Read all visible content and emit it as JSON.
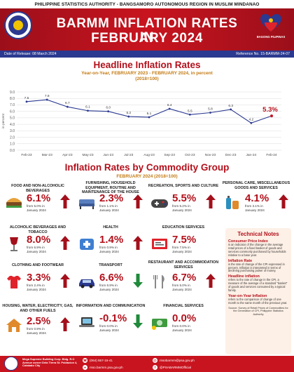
{
  "header": {
    "authority": "PHILIPPINE STATISTICS AUTHORITY - BANGSAMORO AUTONOMOUS REGION IN MUSLIM MINDANAO",
    "title_line1": "BARMM INFLATION RATES IN",
    "title_line2": "FEBRUARY 2024",
    "right_logo_caption": "BAGONG PILIPINAS",
    "release": "Date of Release: 08 March 2024",
    "reference": "Reference No. 15-BARMM-24-07",
    "accent": "#c8141f",
    "navy": "#2b3990"
  },
  "headline": {
    "title": "Headline Inflation Rates",
    "subtitle": "Year-on-Year, FEBRUARY 2023 - FEBRUARY 2024, in percent",
    "base": "(2018=100)"
  },
  "chart_data": {
    "type": "line",
    "ylabel": "in percent",
    "ylim": [
      0,
      9
    ],
    "yticks": [
      "0.0",
      "1.0",
      "2.0",
      "3.0",
      "4.0",
      "5.0",
      "6.0",
      "7.0",
      "8.0",
      "9.0"
    ],
    "categories": [
      "Feb-23",
      "Mar-23",
      "Apr-23",
      "May-23",
      "Jun-23",
      "Jul-23",
      "Aug-23",
      "Sep-23",
      "Oct-23",
      "Nov-23",
      "Dec-23",
      "Jan-24",
      "Feb-24"
    ],
    "values": [
      7.5,
      7.8,
      6.7,
      6.1,
      6.0,
      5.2,
      5.1,
      6.4,
      5.5,
      5.8,
      6.3,
      4.2,
      5.3
    ],
    "data_labels": [
      "7.5",
      "7.8",
      "6.7",
      "6.1",
      "6.0",
      "5.2",
      "5.1",
      "6.4",
      "5.5",
      "5.8",
      "6.3",
      "4.2",
      "5.3%"
    ],
    "line_color": "#2b3990"
  },
  "commodity": {
    "title": "Inflation Rates by Commodity Group",
    "subtitle": "FEBRUARY 2024 (2018=100)",
    "up_color": "#a3101b",
    "down_color": "#1f8a3a",
    "groups": [
      {
        "name": "FOOD AND NON-ALCOHOLIC BEVERAGES",
        "value": "6.1%",
        "from": "from 5.0% in January 2024",
        "direction": "up",
        "icon": "food-icon"
      },
      {
        "name": "FURNISHING, HOUSEHOLD EQUIPMENT, ROUTINE AND MAINTENANCE OF THE HOUSE",
        "value": "2.3%",
        "from": "from 1.1% in January 2024",
        "direction": "up",
        "icon": "furniture-icon"
      },
      {
        "name": "RECREATION, SPORTS AND CULTURE",
        "value": "5.5%",
        "from": "from 5.2% in January 2024",
        "direction": "up",
        "icon": "gamepad-icon"
      },
      {
        "name": "PERSONAL CARE, MISCELLANEOUS GOODS AND SERVICES",
        "value": "4.1%",
        "from": "from 3.1% in January 2024",
        "direction": "up",
        "icon": "personal-care-icon"
      },
      {
        "name": "ALCOHOLIC BEVERAGES AND TOBACCO",
        "value": "8.0%",
        "from": "from 6.9% in January 2024",
        "direction": "up",
        "icon": "wine-icon"
      },
      {
        "name": "HEALTH",
        "value": "1.4%",
        "from": "from 0.9% in January 2024",
        "direction": "up",
        "icon": "health-icon"
      },
      {
        "name": "EDUCATION SERVICES",
        "value": "7.5%",
        "from": "from 7.5% in January 2024",
        "direction": "none",
        "icon": "education-icon"
      },
      {
        "name": "CLOTHING AND FOOTWEAR",
        "value": "3.3%",
        "from": "from 2.4% in January 2024",
        "direction": "up",
        "icon": "clothing-icon"
      },
      {
        "name": "TRANSPORT",
        "value": "6.6%",
        "from": "from 6.9% in January 2024",
        "direction": "down",
        "icon": "car-icon"
      },
      {
        "name": "RESTAURANT AND ACCOMMODATION SERVICES",
        "value": "6.7%",
        "from": "from 5.0% in January 2024",
        "direction": "up",
        "icon": "restaurant-icon"
      },
      {
        "name": "HOUSING, WATER, ELECTRICITY, GAS, AND OTHER FUELS",
        "value": "2.5%",
        "from": "from 0.9% in January 2024",
        "direction": "up",
        "icon": "house-icon"
      },
      {
        "name": "INFORMATION AND COMMUNICATION",
        "value": "-0.1%",
        "from": "from 0.0% in January 2024",
        "direction": "down",
        "icon": "laptop-icon"
      },
      {
        "name": "FINANCIAL SERVICES",
        "value": "0.0%",
        "from": "from 0.0% in January 2024",
        "direction": "none",
        "icon": "money-icon"
      }
    ]
  },
  "notes": {
    "title": "Technical Notes",
    "cpi_title": "Consumer Price Index",
    "cpi_text": "is an indicator of the change in the average retail prices of a fixed basket of goods and services commonly purchased by households relative to a base year.",
    "rate_title": "Inflation Rate",
    "rate_text": "is the rate of change of the CPI expressed in percent. Inflation is interpreted in terms of declining purchasing power of money.",
    "headline_title": "Headline inflation",
    "headline_text": "refers to the rate of change in the CPI, a measure of the average of a standard \"basket\" of goods and services consumed by a typical family.",
    "yoy_title": "Year-on-Year Inflation",
    "yoy_text": "refers to the comparison of change of one month to the same month of the previous year.",
    "source": "Source: Survey of Retail Prices of Commodities for the Generation of CPI, Philippine Statistics Authority"
  },
  "footer": {
    "address": "Mega Supreme Building Corp. Bldg. R.O Avenue corner Dela Tierra St. Poblacion 4, Cotabato City",
    "phone": "(064) 557-15-41",
    "website": "rsso.barmm.psa.gov.ph",
    "email": "rssobarmm@psa.gov.ph",
    "facebook": "@PSABARMMOfficial"
  }
}
